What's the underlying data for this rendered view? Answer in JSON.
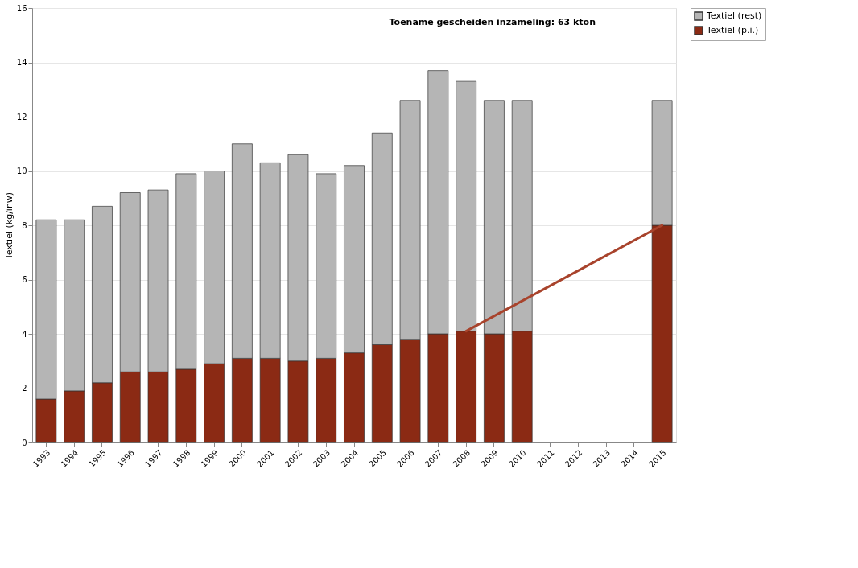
{
  "chart_data": {
    "type": "bar",
    "stacked": true,
    "ylabel": "Textiel (kg/inw)",
    "categories": [
      "1993",
      "1994",
      "1995",
      "1996",
      "1997",
      "1998",
      "1999",
      "2000",
      "2001",
      "2002",
      "2003",
      "2004",
      "2005",
      "2006",
      "2007",
      "2008",
      "2009",
      "2010",
      "2011",
      "2012",
      "2013",
      "2014",
      "2015"
    ],
    "series": [
      {
        "name": "Textiel (p.i.)",
        "color": "#8b2a14",
        "values": [
          1.6,
          1.9,
          2.2,
          2.6,
          2.6,
          2.7,
          2.9,
          3.1,
          3.1,
          3.0,
          3.1,
          3.3,
          3.6,
          3.8,
          4.0,
          4.1,
          4.0,
          4.1,
          null,
          null,
          null,
          null,
          8.0
        ]
      },
      {
        "name": "Textiel (rest)",
        "color": "#b5b5b5",
        "values": [
          6.6,
          6.3,
          6.5,
          6.6,
          6.7,
          7.2,
          7.1,
          7.9,
          7.2,
          7.6,
          6.8,
          6.9,
          7.8,
          8.8,
          9.7,
          9.2,
          8.6,
          8.5,
          null,
          null,
          null,
          null,
          4.6
        ]
      }
    ],
    "ylim": [
      0,
      16
    ],
    "yticks": [
      0,
      2,
      4,
      6,
      8,
      10,
      12,
      14,
      16
    ],
    "grid": "y",
    "legend": "right",
    "annotations": [
      "Toename gescheiden inzameling: 63 kton"
    ]
  }
}
